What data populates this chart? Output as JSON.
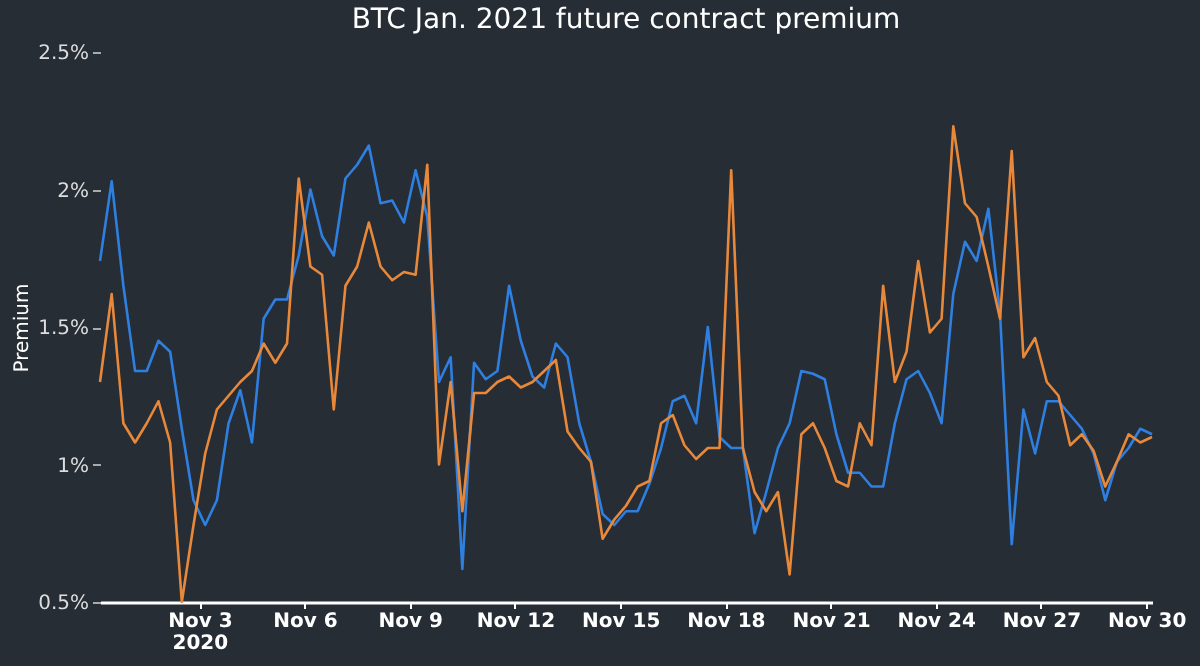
{
  "chart_data": {
    "type": "line",
    "title": "BTC Jan. 2021 future contract premium",
    "ylabel": "Premium",
    "x": [
      "2020-10-31T04:00",
      "2020-10-31T12:00",
      "2020-10-31T20:00",
      "2020-11-01T04:00",
      "2020-11-01T12:00",
      "2020-11-01T20:00",
      "2020-11-02T04:00",
      "2020-11-02T12:00",
      "2020-11-02T20:00",
      "2020-11-03T04:00",
      "2020-11-03T12:00",
      "2020-11-03T20:00",
      "2020-11-04T04:00",
      "2020-11-04T12:00",
      "2020-11-04T20:00",
      "2020-11-05T04:00",
      "2020-11-05T12:00",
      "2020-11-05T20:00",
      "2020-11-06T04:00",
      "2020-11-06T12:00",
      "2020-11-06T20:00",
      "2020-11-07T04:00",
      "2020-11-07T12:00",
      "2020-11-07T20:00",
      "2020-11-08T04:00",
      "2020-11-08T12:00",
      "2020-11-08T20:00",
      "2020-11-09T04:00",
      "2020-11-09T12:00",
      "2020-11-09T20:00",
      "2020-11-10T04:00",
      "2020-11-10T12:00",
      "2020-11-10T20:00",
      "2020-11-11T04:00",
      "2020-11-11T12:00",
      "2020-11-11T20:00",
      "2020-11-12T04:00",
      "2020-11-12T12:00",
      "2020-11-12T20:00",
      "2020-11-13T04:00",
      "2020-11-13T12:00",
      "2020-11-13T20:00",
      "2020-11-14T04:00",
      "2020-11-14T12:00",
      "2020-11-14T20:00",
      "2020-11-15T04:00",
      "2020-11-15T12:00",
      "2020-11-15T20:00",
      "2020-11-16T04:00",
      "2020-11-16T12:00",
      "2020-11-16T20:00",
      "2020-11-17T04:00",
      "2020-11-17T12:00",
      "2020-11-17T20:00",
      "2020-11-18T04:00",
      "2020-11-18T12:00",
      "2020-11-18T20:00",
      "2020-11-19T04:00",
      "2020-11-19T12:00",
      "2020-11-19T20:00",
      "2020-11-20T04:00",
      "2020-11-20T12:00",
      "2020-11-20T20:00",
      "2020-11-21T04:00",
      "2020-11-21T12:00",
      "2020-11-21T20:00",
      "2020-11-22T04:00",
      "2020-11-22T12:00",
      "2020-11-22T20:00",
      "2020-11-23T04:00",
      "2020-11-23T12:00",
      "2020-11-23T20:00",
      "2020-11-24T04:00",
      "2020-11-24T12:00",
      "2020-11-24T20:00",
      "2020-11-25T04:00",
      "2020-11-25T12:00",
      "2020-11-25T20:00",
      "2020-11-26T04:00",
      "2020-11-26T12:00",
      "2020-11-26T20:00",
      "2020-11-27T04:00",
      "2020-11-27T12:00",
      "2020-11-27T20:00",
      "2020-11-28T04:00",
      "2020-11-28T12:00",
      "2020-11-28T20:00",
      "2020-11-29T04:00",
      "2020-11-29T12:00",
      "2020-11-29T20:00",
      "2020-11-30T04:00"
    ],
    "series": [
      {
        "color": "#2f7fe0",
        "values": [
          1.74,
          2.03,
          1.65,
          1.34,
          1.34,
          1.45,
          1.41,
          1.13,
          0.87,
          0.78,
          0.87,
          1.15,
          1.27,
          1.08,
          1.53,
          1.6,
          1.6,
          1.76,
          2.0,
          1.83,
          1.76,
          2.04,
          2.09,
          2.16,
          1.95,
          1.96,
          1.88,
          2.07,
          1.9,
          1.3,
          1.39,
          0.62,
          1.37,
          1.31,
          1.34,
          1.65,
          1.45,
          1.32,
          1.28,
          1.44,
          1.39,
          1.15,
          1.01,
          0.82,
          0.78,
          0.83,
          0.83,
          0.93,
          1.06,
          1.23,
          1.25,
          1.15,
          1.5,
          1.1,
          1.06,
          1.06,
          0.75,
          0.9,
          1.06,
          1.15,
          1.34,
          1.33,
          1.31,
          1.11,
          0.97,
          0.97,
          0.92,
          0.92,
          1.15,
          1.31,
          1.34,
          1.26,
          1.15,
          1.62,
          1.81,
          1.74,
          1.93,
          1.55,
          0.71,
          1.2,
          1.04,
          1.23,
          1.23,
          1.18,
          1.13,
          1.04,
          0.87,
          1.01,
          1.06,
          1.13,
          1.11
        ]
      },
      {
        "color": "#e8883a",
        "values": [
          1.3,
          1.62,
          1.15,
          1.08,
          1.15,
          1.23,
          1.08,
          0.5,
          0.78,
          1.04,
          1.2,
          1.25,
          1.3,
          1.34,
          1.44,
          1.37,
          1.44,
          2.04,
          1.72,
          1.69,
          1.2,
          1.65,
          1.72,
          1.88,
          1.72,
          1.67,
          1.7,
          1.69,
          2.09,
          1.0,
          1.3,
          0.83,
          1.26,
          1.26,
          1.3,
          1.32,
          1.28,
          1.3,
          1.34,
          1.38,
          1.12,
          1.06,
          1.01,
          0.73,
          0.8,
          0.85,
          0.92,
          0.94,
          1.15,
          1.18,
          1.07,
          1.02,
          1.06,
          1.06,
          2.07,
          1.06,
          0.9,
          0.83,
          0.9,
          0.6,
          1.11,
          1.15,
          1.06,
          0.94,
          0.92,
          1.15,
          1.07,
          1.65,
          1.3,
          1.41,
          1.74,
          1.48,
          1.53,
          2.23,
          1.95,
          1.9,
          1.72,
          1.53,
          2.14,
          1.39,
          1.46,
          1.3,
          1.25,
          1.07,
          1.11,
          1.05,
          0.92,
          1.01,
          1.11,
          1.08,
          1.1
        ]
      }
    ],
    "xlim": [
      "2020-10-31T04:00",
      "2020-11-30T04:00"
    ],
    "xticks": [
      {
        "value": "2020-11-03",
        "label": "Nov 3\n2020"
      },
      {
        "value": "2020-11-06",
        "label": "Nov 6"
      },
      {
        "value": "2020-11-09",
        "label": "Nov 9"
      },
      {
        "value": "2020-11-12",
        "label": "Nov 12"
      },
      {
        "value": "2020-11-15",
        "label": "Nov 15"
      },
      {
        "value": "2020-11-18",
        "label": "Nov 18"
      },
      {
        "value": "2020-11-21",
        "label": "Nov 21"
      },
      {
        "value": "2020-11-24",
        "label": "Nov 24"
      },
      {
        "value": "2020-11-27",
        "label": "Nov 27"
      },
      {
        "value": "2020-11-30",
        "label": "Nov 30"
      }
    ],
    "ylim": [
      0.5,
      2.5
    ],
    "yticks": [
      {
        "value": 0.5,
        "label": "0.5%"
      },
      {
        "value": 1,
        "label": "1%"
      },
      {
        "value": 1.5,
        "label": "1.5%"
      },
      {
        "value": 2,
        "label": "2%"
      },
      {
        "value": 2.5,
        "label": "2.5%"
      }
    ],
    "grid": false,
    "line_style": "solid",
    "marker": "none"
  }
}
